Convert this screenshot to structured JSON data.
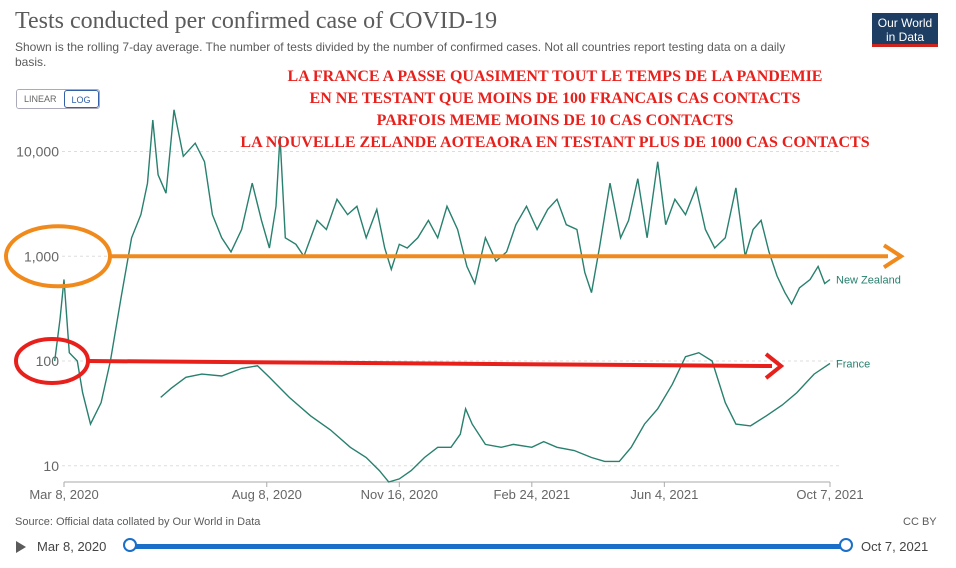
{
  "header": {
    "title": "Tests conducted per confirmed case of COVID-19",
    "subtitle": "Shown is the rolling 7-day average. The number of tests divided by the number of confirmed cases. Not all countries report testing data on a daily basis.",
    "logo_line1": "Our World",
    "logo_line2": "in Data"
  },
  "scale_toggle": {
    "linear_label": "LINEAR",
    "log_label": "LOG",
    "active": "LOG"
  },
  "annotations": {
    "lines": [
      "LA FRANCE A PASSE QUASIMENT TOUT LE TEMPS DE LA PANDEMIE",
      "EN NE TESTANT QUE MOINS DE 100 FRANCAIS CAS CONTACTS",
      "PARFOIS MEME MOINS DE 10 CAS CONTACTS",
      "LA NOUVELLE  ZELANDE AOTEAORA EN TESTANT PLUS DE 1000 CAS CONTACTS"
    ],
    "color": "#e8201c",
    "orange_color": "#f08a1c",
    "red_color": "#e8201c"
  },
  "chart_data": {
    "type": "line",
    "yscale": "log",
    "ylim": [
      7,
      20000
    ],
    "yticks": [
      10,
      100,
      1000,
      10000
    ],
    "ytick_labels": [
      "10",
      "100",
      "1,000",
      "10,000"
    ],
    "xlim": [
      "2020-03-08",
      "2021-10-07"
    ],
    "xticks": [
      "2020-03-08",
      "2020-08-08",
      "2020-11-16",
      "2021-02-24",
      "2021-06-04",
      "2021-10-07"
    ],
    "xtick_labels": [
      "Mar 8, 2020",
      "Aug 8, 2020",
      "Nov 16, 2020",
      "Feb 24, 2021",
      "Jun 4, 2021",
      "Oct 7, 2021"
    ],
    "series": [
      {
        "name": "New Zealand",
        "color": "#28806e",
        "points": [
          [
            "2020-03-01",
            100
          ],
          [
            "2020-03-05",
            250
          ],
          [
            "2020-03-08",
            600
          ],
          [
            "2020-03-12",
            120
          ],
          [
            "2020-03-18",
            100
          ],
          [
            "2020-03-22",
            50
          ],
          [
            "2020-03-28",
            25
          ],
          [
            "2020-04-05",
            40
          ],
          [
            "2020-04-12",
            100
          ],
          [
            "2020-04-20",
            400
          ],
          [
            "2020-04-28",
            1500
          ],
          [
            "2020-05-05",
            2500
          ],
          [
            "2020-05-10",
            5000
          ],
          [
            "2020-05-14",
            20000
          ],
          [
            "2020-05-18",
            6000
          ],
          [
            "2020-05-24",
            4000
          ],
          [
            "2020-05-30",
            25000
          ],
          [
            "2020-06-06",
            9000
          ],
          [
            "2020-06-15",
            12000
          ],
          [
            "2020-06-22",
            8000
          ],
          [
            "2020-06-28",
            2500
          ],
          [
            "2020-07-05",
            1500
          ],
          [
            "2020-07-12",
            1100
          ],
          [
            "2020-07-20",
            1800
          ],
          [
            "2020-07-28",
            5000
          ],
          [
            "2020-08-04",
            2200
          ],
          [
            "2020-08-10",
            1200
          ],
          [
            "2020-08-15",
            3000
          ],
          [
            "2020-08-18",
            14000
          ],
          [
            "2020-08-22",
            1500
          ],
          [
            "2020-08-30",
            1300
          ],
          [
            "2020-09-05",
            1000
          ],
          [
            "2020-09-15",
            2200
          ],
          [
            "2020-09-22",
            1800
          ],
          [
            "2020-09-30",
            3500
          ],
          [
            "2020-10-08",
            2500
          ],
          [
            "2020-10-15",
            3000
          ],
          [
            "2020-10-22",
            1500
          ],
          [
            "2020-10-30",
            2800
          ],
          [
            "2020-11-05",
            1200
          ],
          [
            "2020-11-10",
            750
          ],
          [
            "2020-11-16",
            1300
          ],
          [
            "2020-11-22",
            1200
          ],
          [
            "2020-11-30",
            1500
          ],
          [
            "2020-12-08",
            2200
          ],
          [
            "2020-12-15",
            1500
          ],
          [
            "2020-12-22",
            3000
          ],
          [
            "2020-12-30",
            1800
          ],
          [
            "2021-01-06",
            800
          ],
          [
            "2021-01-12",
            550
          ],
          [
            "2021-01-20",
            1500
          ],
          [
            "2021-01-28",
            900
          ],
          [
            "2021-02-05",
            1100
          ],
          [
            "2021-02-12",
            2000
          ],
          [
            "2021-02-20",
            3000
          ],
          [
            "2021-02-28",
            1800
          ],
          [
            "2021-03-08",
            2800
          ],
          [
            "2021-03-15",
            3500
          ],
          [
            "2021-03-22",
            2000
          ],
          [
            "2021-03-30",
            1800
          ],
          [
            "2021-04-05",
            700
          ],
          [
            "2021-04-10",
            450
          ],
          [
            "2021-04-16",
            1200
          ],
          [
            "2021-04-24",
            5000
          ],
          [
            "2021-05-02",
            1500
          ],
          [
            "2021-05-08",
            2200
          ],
          [
            "2021-05-15",
            5500
          ],
          [
            "2021-05-22",
            1500
          ],
          [
            "2021-05-30",
            8000
          ],
          [
            "2021-06-05",
            2000
          ],
          [
            "2021-06-12",
            3500
          ],
          [
            "2021-06-20",
            2500
          ],
          [
            "2021-06-28",
            4500
          ],
          [
            "2021-07-05",
            1800
          ],
          [
            "2021-07-12",
            1200
          ],
          [
            "2021-07-20",
            1500
          ],
          [
            "2021-07-28",
            4500
          ],
          [
            "2021-08-04",
            1000
          ],
          [
            "2021-08-10",
            1800
          ],
          [
            "2021-08-16",
            2200
          ],
          [
            "2021-08-22",
            1100
          ],
          [
            "2021-08-28",
            650
          ],
          [
            "2021-09-03",
            450
          ],
          [
            "2021-09-08",
            350
          ],
          [
            "2021-09-14",
            500
          ],
          [
            "2021-09-22",
            600
          ],
          [
            "2021-09-28",
            800
          ],
          [
            "2021-10-03",
            550
          ],
          [
            "2021-10-07",
            600
          ]
        ]
      },
      {
        "name": "France",
        "color": "#28806e",
        "points": [
          [
            "2020-05-20",
            45
          ],
          [
            "2020-05-28",
            55
          ],
          [
            "2020-06-08",
            70
          ],
          [
            "2020-06-20",
            75
          ],
          [
            "2020-07-05",
            72
          ],
          [
            "2020-07-20",
            85
          ],
          [
            "2020-08-01",
            90
          ],
          [
            "2020-08-10",
            70
          ],
          [
            "2020-08-25",
            45
          ],
          [
            "2020-09-10",
            30
          ],
          [
            "2020-09-25",
            22
          ],
          [
            "2020-10-10",
            15
          ],
          [
            "2020-10-22",
            12
          ],
          [
            "2020-11-01",
            9
          ],
          [
            "2020-11-08",
            7
          ],
          [
            "2020-11-16",
            7.5
          ],
          [
            "2020-11-25",
            9
          ],
          [
            "2020-12-05",
            12
          ],
          [
            "2020-12-15",
            15
          ],
          [
            "2020-12-25",
            15
          ],
          [
            "2021-01-01",
            20
          ],
          [
            "2021-01-05",
            35
          ],
          [
            "2021-01-10",
            25
          ],
          [
            "2021-01-20",
            16
          ],
          [
            "2021-02-01",
            15
          ],
          [
            "2021-02-10",
            16
          ],
          [
            "2021-02-24",
            15
          ],
          [
            "2021-03-05",
            17
          ],
          [
            "2021-03-15",
            15
          ],
          [
            "2021-03-28",
            14
          ],
          [
            "2021-04-10",
            12
          ],
          [
            "2021-04-20",
            11
          ],
          [
            "2021-05-01",
            11
          ],
          [
            "2021-05-10",
            15
          ],
          [
            "2021-05-20",
            25
          ],
          [
            "2021-05-30",
            35
          ],
          [
            "2021-06-10",
            60
          ],
          [
            "2021-06-20",
            110
          ],
          [
            "2021-06-30",
            120
          ],
          [
            "2021-07-10",
            100
          ],
          [
            "2021-07-20",
            40
          ],
          [
            "2021-07-28",
            25
          ],
          [
            "2021-08-08",
            24
          ],
          [
            "2021-08-20",
            30
          ],
          [
            "2021-09-01",
            38
          ],
          [
            "2021-09-12",
            50
          ],
          [
            "2021-09-25",
            75
          ],
          [
            "2021-10-07",
            95
          ]
        ]
      }
    ]
  },
  "footer": {
    "source": "Source: Official data collated by Our World in Data",
    "license": "CC BY"
  },
  "timeline": {
    "start_label": "Mar 8, 2020",
    "end_label": "Oct 7, 2021"
  }
}
